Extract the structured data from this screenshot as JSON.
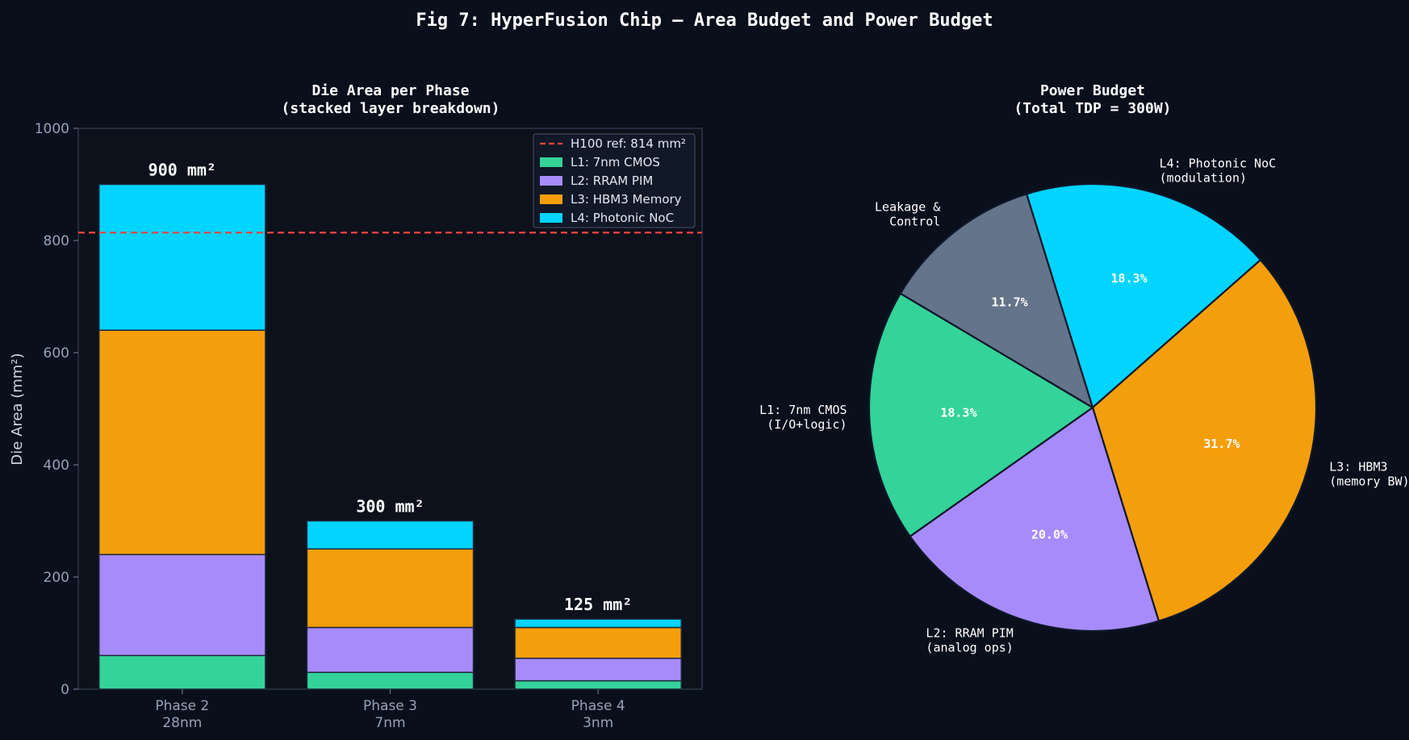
{
  "figure": {
    "title": "Fig 7: HyperFusion Chip — Area Budget and Power Budget",
    "background": "#0a0f1c"
  },
  "chart_data": [
    {
      "type": "bar",
      "stacked": true,
      "title_line1": "Die Area per Phase",
      "title_line2": "(stacked layer breakdown)",
      "xlabel": "",
      "ylabel": "Die Area (mm²)",
      "ylim": [
        0,
        1000
      ],
      "yticks": [
        0,
        200,
        400,
        600,
        800,
        1000
      ],
      "grid": false,
      "legend_position": "top-right",
      "categories": [
        {
          "line1": "Phase 2",
          "line2": "28nm"
        },
        {
          "line1": "Phase 3",
          "line2": "7nm"
        },
        {
          "line1": "Phase 4",
          "line2": "3nm"
        }
      ],
      "series": [
        {
          "name": "L1: 7nm CMOS",
          "color": "#34d399",
          "values": [
            60,
            30,
            15
          ]
        },
        {
          "name": "L2: RRAM PIM",
          "color": "#a78bfa",
          "values": [
            180,
            80,
            40
          ]
        },
        {
          "name": "L3: HBM3 Memory",
          "color": "#f59e0b",
          "values": [
            400,
            140,
            55
          ]
        },
        {
          "name": "L4: Photonic NoC",
          "color": "#00d4ff",
          "values": [
            260,
            50,
            15
          ]
        }
      ],
      "totals": [
        "900 mm²",
        "300 mm²",
        "125 mm²"
      ],
      "reference_line": {
        "value": 814,
        "label": "H100 ref: 814 mm²",
        "color": "#ef4444"
      }
    },
    {
      "type": "pie",
      "title_line1": "Power Budget",
      "title_line2": "(Total TDP = 300W)",
      "slices": [
        {
          "label_line1": "L4: Photonic NoC",
          "label_line2": "(modulation)",
          "value": 18.3,
          "pct": "18.3%",
          "color": "#00d4ff"
        },
        {
          "label_line1": "L3: HBM3",
          "label_line2": "(memory BW)",
          "value": 31.7,
          "pct": "31.7%",
          "color": "#f59e0b"
        },
        {
          "label_line1": "L2: RRAM PIM",
          "label_line2": "(analog ops)",
          "value": 20.0,
          "pct": "20.0%",
          "color": "#a78bfa"
        },
        {
          "label_line1": "L1: 7nm CMOS",
          "label_line2": "(I/O+logic)",
          "value": 18.3,
          "pct": "18.3%",
          "color": "#34d399"
        },
        {
          "label_line1": "Leakage &",
          "label_line2": "Control",
          "value": 11.7,
          "pct": "11.7%",
          "color": "#64748b"
        }
      ]
    }
  ]
}
